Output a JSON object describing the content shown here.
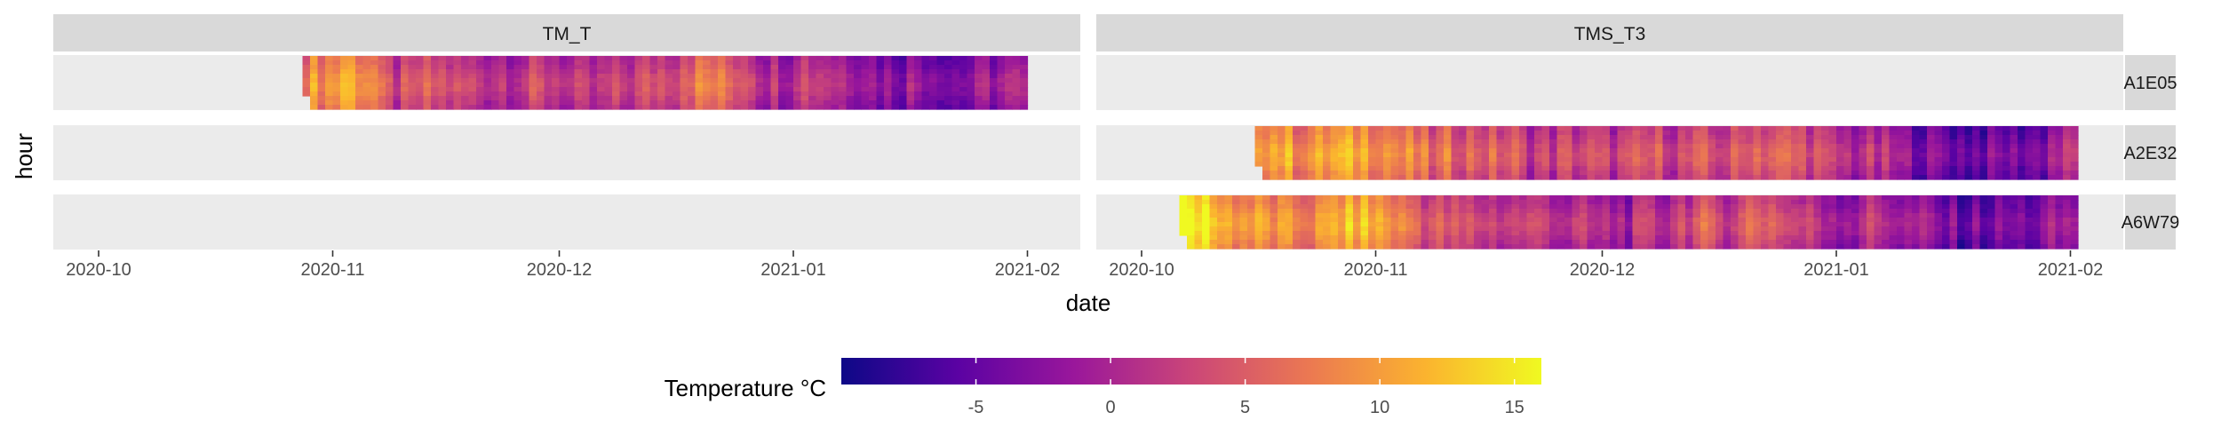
{
  "chart_data": {
    "type": "heatmap",
    "xlabel": "date",
    "ylabel": "hour",
    "columns": [
      "TM_T",
      "TMS_T3"
    ],
    "rows": [
      "A1E05",
      "A2E32",
      "A6W79"
    ],
    "xlim": [
      "2020-09-25",
      "2021-02-08"
    ],
    "x_ticks": [
      "2020-10",
      "2020-11",
      "2020-12",
      "2021-01",
      "2021-02"
    ],
    "ylim": [
      0,
      23
    ],
    "colorbar": {
      "title": "Temperature °C",
      "range": [
        -10,
        16
      ],
      "ticks": [
        -5,
        0,
        5,
        10,
        15
      ],
      "colors": [
        "#0d0887",
        "#5b02a3",
        "#9a179b",
        "#cb4678",
        "#eb7852",
        "#fbb32f",
        "#f0f921"
      ]
    },
    "panels": [
      {
        "column": "TM_T",
        "row": "A1E05",
        "start": "2020-10-28",
        "end": "2021-01-31",
        "has_data": true
      },
      {
        "column": "TMS_T3",
        "row": "A1E05",
        "has_data": false
      },
      {
        "column": "TM_T",
        "row": "A2E32",
        "has_data": false
      },
      {
        "column": "TMS_T3",
        "row": "A2E32",
        "start": "2020-10-16",
        "end": "2021-02-01",
        "has_data": true
      },
      {
        "column": "TM_T",
        "row": "A6W79",
        "has_data": false
      },
      {
        "column": "TMS_T3",
        "row": "A6W79",
        "start": "2020-10-06",
        "end": "2021-02-01",
        "has_data": true
      }
    ],
    "daily_mean_trend": [
      {
        "date": "2020-10-06",
        "value": 14
      },
      {
        "date": "2020-10-20",
        "value": 9
      },
      {
        "date": "2020-11-01",
        "value": 11
      },
      {
        "date": "2020-11-08",
        "value": 4
      },
      {
        "date": "2020-11-20",
        "value": 2
      },
      {
        "date": "2020-12-05",
        "value": 1
      },
      {
        "date": "2020-12-20",
        "value": 5
      },
      {
        "date": "2021-01-05",
        "value": 0
      },
      {
        "date": "2021-01-20",
        "value": -4
      },
      {
        "date": "2021-02-01",
        "value": -1
      }
    ],
    "strip_colors": {
      "strip": "#d9d9d9",
      "panel": "#ebebeb"
    }
  }
}
